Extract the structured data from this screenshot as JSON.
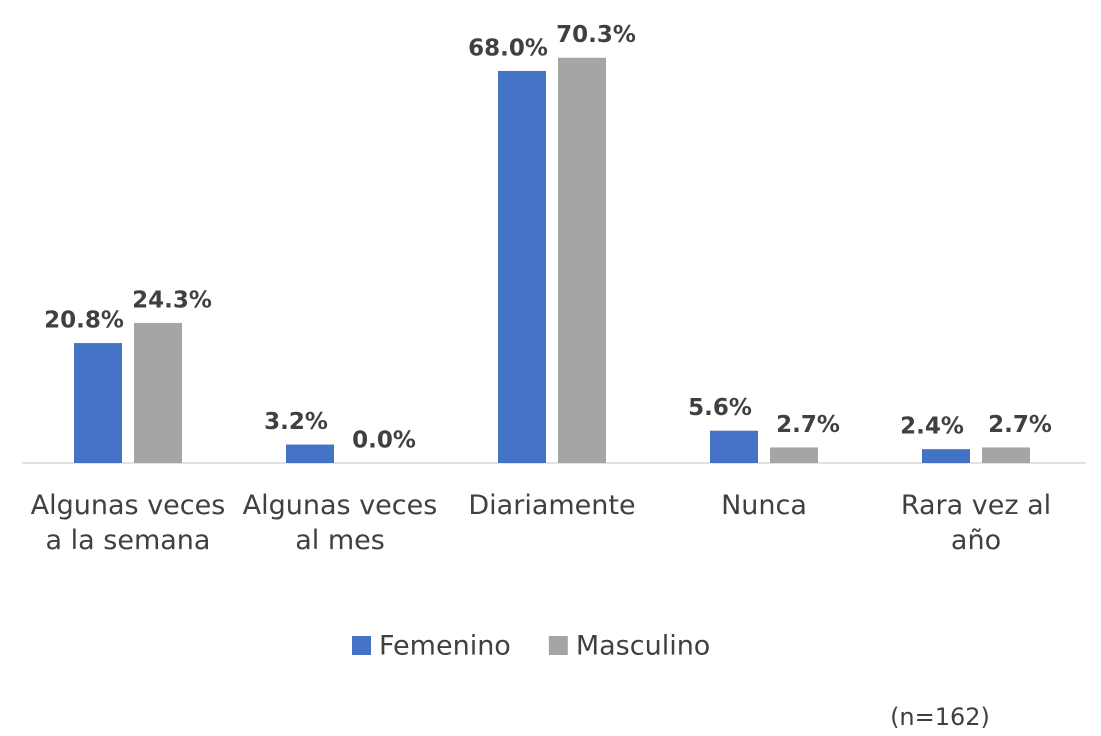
{
  "chart_data": {
    "type": "bar",
    "categories": [
      "Algunas veces a la semana",
      "Algunas veces al mes",
      "Diariamente",
      "Nunca",
      "Rara vez al año"
    ],
    "series": [
      {
        "name": "Femenino",
        "color": "#4472c4",
        "values": [
          20.8,
          3.2,
          68.0,
          5.6,
          2.4
        ],
        "value_labels": [
          "20.8%",
          "3.2%",
          "68.0%",
          "5.6%",
          "2.4%"
        ]
      },
      {
        "name": "Masculino",
        "color": "#a5a5a5",
        "values": [
          24.3,
          0.0,
          70.3,
          2.7,
          2.7
        ],
        "value_labels": [
          "24.3%",
          "0.0%",
          "70.3%",
          "2.7%",
          "2.7%"
        ]
      }
    ],
    "legend": "bottom",
    "note": "(n=162)"
  }
}
